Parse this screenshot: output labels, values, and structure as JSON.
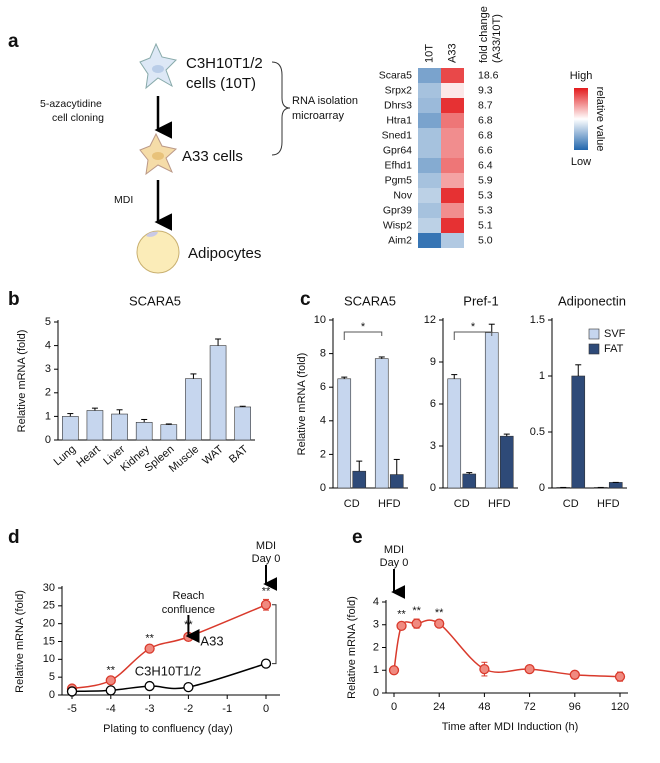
{
  "diagram": {
    "panel": "a",
    "cell1": [
      "C3H10T1/2",
      "cells (10T)"
    ],
    "step1": [
      "5-azacytidine",
      "cell cloning"
    ],
    "cell2": "A33 cells",
    "step2": "MDI",
    "cell3": "Adipocytes",
    "bracket": [
      "RNA isolation",
      "microarray"
    ]
  },
  "chart_data": [
    {
      "type": "heatmap",
      "rows": [
        "Scara5",
        "Srpx2",
        "Dhrs3",
        "Htra1",
        "Sned1",
        "Gpr64",
        "Efhd1",
        "Pgm5",
        "Nov",
        "Gpr39",
        "Wisp2",
        "Aim2"
      ],
      "series": [
        {
          "name": "10T",
          "values": [
            -0.6,
            -0.4,
            -0.45,
            -0.6,
            -0.4,
            -0.4,
            -0.55,
            -0.4,
            -0.3,
            -0.4,
            -0.3,
            -0.9
          ]
        },
        {
          "name": "A33",
          "values": [
            0.8,
            0.1,
            0.9,
            0.6,
            0.5,
            0.5,
            0.6,
            0.4,
            0.9,
            0.5,
            0.9,
            -0.35
          ]
        }
      ],
      "fold_change_label": [
        "fold change",
        "(A33/10T)"
      ],
      "fold_change": [
        "18.6",
        "9.3",
        "8.7",
        "6.8",
        "6.8",
        "6.6",
        "6.4",
        "5.9",
        "5.3",
        "5.3",
        "5.1",
        "5.0"
      ],
      "clim": [
        -1,
        1
      ],
      "colorbar": {
        "high": "High",
        "low": "Low",
        "label": "relative value"
      }
    },
    {
      "type": "bar",
      "panel": "b",
      "title": "SCARA5",
      "ylabel": "Relative mRNA (fold)",
      "categories": [
        "Lung",
        "Heart",
        "Liver",
        "Kidney",
        "Spleen",
        "Muscle",
        "WAT",
        "BAT"
      ],
      "values": [
        1.0,
        1.25,
        1.1,
        0.75,
        0.65,
        2.6,
        4.0,
        1.4
      ],
      "errors": [
        0.12,
        0.1,
        0.18,
        0.12,
        0.03,
        0.2,
        0.28,
        0.03
      ],
      "color": "#c6d6ee",
      "ylim": [
        0,
        5
      ],
      "yticks": [
        0,
        1,
        2,
        3,
        4,
        5
      ]
    },
    {
      "type": "grouped_bar",
      "panel": "c",
      "title": "SCARA5",
      "ylabel": "Relative mRNA (fold)",
      "categories": [
        "CD",
        "HFD"
      ],
      "series": [
        {
          "color": "#c6d6ee",
          "values": [
            6.5,
            7.7
          ],
          "errors": [
            0.1,
            0.1
          ]
        },
        {
          "color": "#2e4a78",
          "values": [
            1.0,
            0.8
          ],
          "errors": [
            0.6,
            0.9
          ]
        }
      ],
      "significance": "*",
      "ylim": [
        0,
        10
      ],
      "yticks": [
        0,
        2,
        4,
        6,
        8,
        10
      ]
    },
    {
      "type": "grouped_bar",
      "title": "Pref-1",
      "categories": [
        "CD",
        "HFD"
      ],
      "series": [
        {
          "color": "#c6d6ee",
          "values": [
            7.8,
            11.1
          ],
          "errors": [
            0.3,
            0.6
          ]
        },
        {
          "color": "#2e4a78",
          "values": [
            1.0,
            3.7
          ],
          "errors": [
            0.1,
            0.15
          ]
        }
      ],
      "significance": "*",
      "ylim": [
        0,
        12
      ],
      "yticks": [
        0,
        3,
        6,
        9,
        12
      ]
    },
    {
      "type": "grouped_bar",
      "title": "Adiponectin",
      "categories": [
        "CD",
        "HFD"
      ],
      "series": [
        {
          "name": "SVF",
          "color": "#c6d6ee",
          "values": [
            0.005,
            0.005
          ],
          "errors": [
            0,
            0
          ]
        },
        {
          "name": "FAT",
          "color": "#2e4a78",
          "values": [
            1.0,
            0.05
          ],
          "errors": [
            0.1,
            0
          ]
        }
      ],
      "legend": "upper right",
      "ylim": [
        0,
        1.5
      ],
      "yticks": [
        0,
        0.5,
        1,
        1.5
      ]
    },
    {
      "type": "line",
      "panel": "d",
      "ylabel": "Relative mRNA (fold)",
      "xlabel": "Plating to confluency (day)",
      "x": [
        -5,
        -4,
        -3,
        -2,
        0
      ],
      "xlim": [
        -5,
        0
      ],
      "xticks": [
        -5,
        -4,
        -3,
        -2,
        -1,
        0
      ],
      "ylim": [
        0,
        30
      ],
      "yticks": [
        0,
        5,
        10,
        15,
        20,
        25,
        30
      ],
      "series": [
        {
          "name": "A33",
          "color": "#d93a2c",
          "marker": "filled",
          "values": [
            1.8,
            4.1,
            13.0,
            16.3,
            25.3
          ],
          "errors": [
            0.3,
            0.5,
            0.6,
            1.0,
            1.5
          ],
          "significance": [
            null,
            "**",
            "**",
            "**",
            "**"
          ]
        },
        {
          "name": "C3H10T1/2",
          "color": "#000000",
          "marker": "open",
          "values": [
            1.0,
            1.3,
            2.5,
            2.2,
            8.8
          ],
          "errors": [
            0.2,
            0.2,
            0.3,
            0.3,
            0.4
          ]
        }
      ],
      "annotations": [
        {
          "text": [
            "Reach",
            "confluence"
          ],
          "x": -2
        },
        {
          "text": [
            "MDI",
            "Day 0"
          ],
          "x": 0
        }
      ]
    },
    {
      "type": "line",
      "panel": "e",
      "ylabel": "Relative mRNA (fold)",
      "xlabel": "Time after MDI Induction (h)",
      "x": [
        0,
        4,
        12,
        24,
        48,
        72,
        96,
        120
      ],
      "xlim": [
        0,
        120
      ],
      "xticks": [
        0,
        24,
        48,
        72,
        96,
        120
      ],
      "ylim": [
        0,
        4
      ],
      "yticks": [
        0,
        1,
        2,
        3,
        4
      ],
      "series": [
        {
          "color": "#d93a2c",
          "marker": "filled",
          "values": [
            1.0,
            2.95,
            3.05,
            3.05,
            1.05,
            1.05,
            0.8,
            0.72
          ],
          "errors": [
            0.05,
            0.15,
            0.2,
            0.1,
            0.3,
            0.1,
            0.15,
            0.2
          ],
          "significance": [
            null,
            "**",
            "**",
            "**",
            null,
            null,
            null,
            null
          ]
        }
      ],
      "annotations": [
        {
          "text": [
            "MDI",
            "Day 0"
          ],
          "x": 0
        }
      ]
    }
  ]
}
